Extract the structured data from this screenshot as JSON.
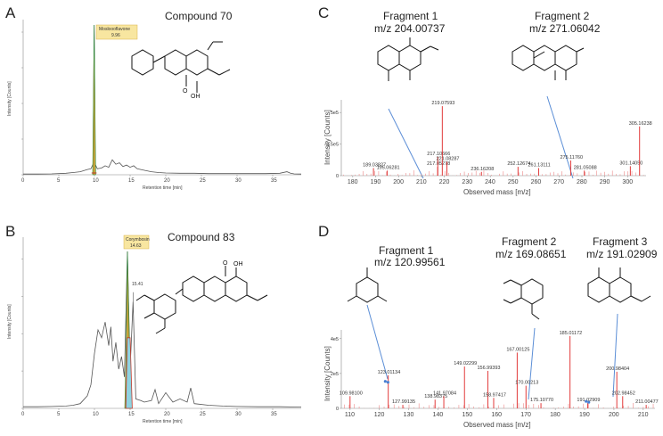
{
  "panels": {
    "A": {
      "letter": "A",
      "title": "Compound  70",
      "callout_name": "Mosloooflavone",
      "callout_rt": "9.96",
      "xlabel": "Retention time [min]",
      "ylabel": "Intensity [Counts]",
      "oh": "OH"
    },
    "B": {
      "letter": "B",
      "title": "Compound  83",
      "callout_name": "Corymbosin",
      "callout_rt": "14.63",
      "second_rt": "15.41",
      "xlabel": "Retention time [min]",
      "ylabel": "Intensity [Counts]",
      "oh": "OH"
    },
    "C": {
      "letter": "C",
      "frag1_line1": "Fragment  1",
      "frag1_line2": "m/z 204.00737",
      "frag2_line1": "Fragment  2",
      "frag2_line2": "m/z 271.06042",
      "xlabel": "Observed mass [m/z]",
      "ylabel": "Intensity [Counts]"
    },
    "D": {
      "letter": "D",
      "frag1_line1": "Fragment  1",
      "frag1_line2": "m/z 120.99561",
      "frag2_line1": "Fragment  2",
      "frag2_line2": "m/z 169.08651",
      "frag3_line1": "Fragment  3",
      "frag3_line2": "m/z 191.02909",
      "xlabel": "Observed mass [m/z]",
      "ylabel": "Intensity [Counts]"
    }
  },
  "chart_data": [
    {
      "type": "line",
      "panel": "A",
      "title": "Compound  70",
      "xlabel": "Retention time [min]",
      "ylabel": "Intensity [Counts]",
      "xlim": [
        0,
        39
      ],
      "ylim": [
        0,
        1
      ],
      "xticks": [
        0,
        5,
        10,
        15,
        20,
        25,
        30,
        35
      ],
      "series": [
        {
          "x": [
            0,
            2,
            4,
            6,
            7,
            8,
            9,
            9.5,
            9.8,
            9.96,
            10.1,
            10.4,
            11,
            11.5,
            12,
            12.5,
            13,
            13.5,
            14,
            14.5,
            15,
            15.5,
            16,
            17,
            18,
            19,
            20,
            22,
            24,
            26,
            28,
            30,
            32,
            34,
            36,
            37,
            37.5,
            38,
            39
          ],
          "y": [
            0.005,
            0.005,
            0.006,
            0.01,
            0.015,
            0.02,
            0.035,
            0.04,
            0.07,
            1.0,
            0.07,
            0.04,
            0.045,
            0.06,
            0.05,
            0.1,
            0.07,
            0.08,
            0.055,
            0.065,
            0.05,
            0.06,
            0.04,
            0.03,
            0.02,
            0.015,
            0.012,
            0.01,
            0.01,
            0.008,
            0.008,
            0.008,
            0.008,
            0.008,
            0.01,
            0.02,
            0.01,
            0.006,
            0.005
          ]
        }
      ],
      "annotations": [
        "Mosloooflavone",
        "9.96"
      ]
    },
    {
      "type": "line",
      "panel": "B",
      "title": "Compound  83",
      "xlabel": "Retention time [min]",
      "ylabel": "Intensity [Counts]",
      "xlim": [
        0,
        39
      ],
      "ylim": [
        0,
        1
      ],
      "xticks": [
        0,
        5,
        10,
        15,
        20,
        25,
        30,
        35
      ],
      "series": [
        {
          "x": [
            0,
            2,
            4,
            6,
            7,
            8,
            9,
            9.5,
            10,
            10.5,
            11,
            11.5,
            12,
            12.3,
            12.6,
            13,
            13.4,
            13.8,
            14.2,
            14.63,
            15.0,
            15.41,
            15.8,
            16.5,
            17,
            18,
            18.5,
            19,
            20,
            21,
            22,
            23,
            23.5,
            24,
            26,
            28,
            30,
            33,
            36,
            39
          ],
          "y": [
            0.01,
            0.01,
            0.012,
            0.015,
            0.02,
            0.03,
            0.08,
            0.15,
            0.35,
            0.5,
            0.45,
            0.55,
            0.4,
            0.52,
            0.3,
            0.42,
            0.25,
            0.33,
            0.2,
            1.0,
            0.25,
            0.68,
            0.06,
            0.05,
            0.04,
            0.05,
            0.12,
            0.03,
            0.1,
            0.04,
            0.06,
            0.04,
            0.13,
            0.03,
            0.02,
            0.015,
            0.012,
            0.01,
            0.01,
            0.008
          ]
        }
      ],
      "annotations": [
        "Corymbosin",
        "14.63",
        "15.41"
      ]
    },
    {
      "type": "bar",
      "panel": "C",
      "xlabel": "Observed mass [m/z]",
      "ylabel": "Intensity [Counts]",
      "xlim": [
        175,
        308
      ],
      "ylim": [
        0,
        600000
      ],
      "xticks": [
        180,
        190,
        200,
        210,
        220,
        230,
        240,
        250,
        260,
        270,
        280,
        290,
        300
      ],
      "yticks": [
        {
          "v": 0,
          "label": "0"
        },
        {
          "v": 250000,
          "label": "2.5e5"
        },
        {
          "v": 500000,
          "label": "5e5"
        }
      ],
      "peaks": [
        {
          "mz": 189.03827,
          "i": 60000,
          "label": "189.03827"
        },
        {
          "mz": 195.06281,
          "i": 40000,
          "label": "195.06281"
        },
        {
          "mz": 217.05278,
          "i": 70000,
          "label": "217.05278"
        },
        {
          "mz": 217.10666,
          "i": 150000,
          "label": "217.10666"
        },
        {
          "mz": 219.07593,
          "i": 550000,
          "label": "219.07593"
        },
        {
          "mz": 221.08287,
          "i": 110000,
          "label": "221.08287"
        },
        {
          "mz": 236.16208,
          "i": 30000,
          "label": "236.16208"
        },
        {
          "mz": 252.12674,
          "i": 70000,
          "label": "252.12674"
        },
        {
          "mz": 261.13111,
          "i": 60000,
          "label": "261.13111"
        },
        {
          "mz": 275.1176,
          "i": 120000,
          "label": "275.11760"
        },
        {
          "mz": 281.05088,
          "i": 40000,
          "label": "281.05088"
        },
        {
          "mz": 301.1405,
          "i": 75000,
          "label": "301.14050"
        },
        {
          "mz": 305.16238,
          "i": 390000,
          "label": "305.16238"
        }
      ],
      "fragments": [
        "Fragment  1 m/z 204.00737",
        "Fragment  2 m/z 271.06042"
      ]
    },
    {
      "type": "bar",
      "panel": "D",
      "xlabel": "Observed mass [m/z]",
      "ylabel": "Intensity [Counts]",
      "xlim": [
        107,
        214
      ],
      "ylim": [
        0,
        450000
      ],
      "xticks": [
        110,
        120,
        130,
        140,
        150,
        160,
        170,
        180,
        190,
        200,
        210
      ],
      "yticks": [
        {
          "v": 0,
          "label": "0"
        },
        {
          "v": 200000,
          "label": "2e5"
        },
        {
          "v": 400000,
          "label": "4e5"
        }
      ],
      "peaks": [
        {
          "mz": 109.981,
          "i": 70000,
          "label": "109.98100"
        },
        {
          "mz": 123.01134,
          "i": 190000,
          "label": "123.01134"
        },
        {
          "mz": 127.99135,
          "i": 20000,
          "label": "127.99135"
        },
        {
          "mz": 138.98375,
          "i": 50000,
          "label": "138.98375"
        },
        {
          "mz": 141.97084,
          "i": 70000,
          "label": "141.97084"
        },
        {
          "mz": 149.02299,
          "i": 240000,
          "label": "149.02299"
        },
        {
          "mz": 156.99393,
          "i": 215000,
          "label": "156.99393"
        },
        {
          "mz": 158.97417,
          "i": 60000,
          "label": "158.97417"
        },
        {
          "mz": 167.00125,
          "i": 320000,
          "label": "167.00125"
        },
        {
          "mz": 170.00213,
          "i": 130000,
          "label": "170.00213"
        },
        {
          "mz": 175.1077,
          "i": 30000,
          "label": "175.10770"
        },
        {
          "mz": 185.01172,
          "i": 415000,
          "label": "185.01172"
        },
        {
          "mz": 191.02909,
          "i": 30000,
          "label": "191.02909"
        },
        {
          "mz": 200.98404,
          "i": 210000,
          "label": "200.98404"
        },
        {
          "mz": 202.98452,
          "i": 70000,
          "label": "202.98452"
        },
        {
          "mz": 211.00477,
          "i": 20000,
          "label": "211.00477"
        }
      ],
      "fragments": [
        "Fragment  1 m/z 120.99561",
        "Fragment  2 m/z 169.08651",
        "Fragment  3 m/z 191.02909"
      ]
    }
  ]
}
